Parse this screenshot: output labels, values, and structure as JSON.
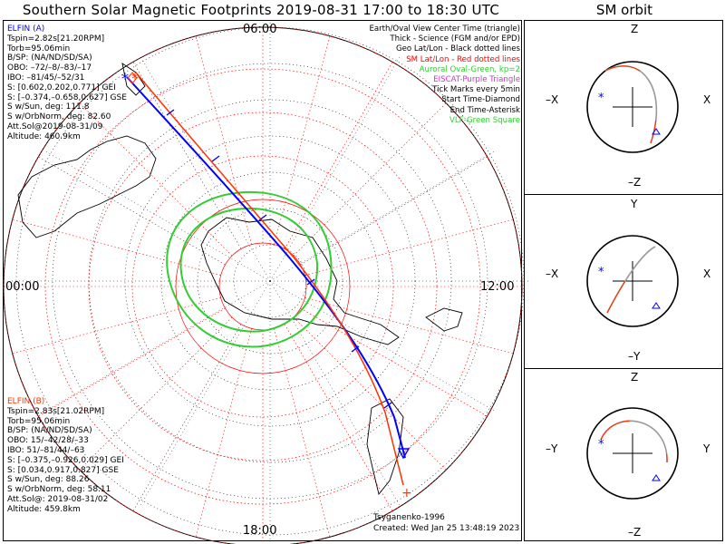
{
  "title": "Southern Solar Magnetic Footprints 2019-08-31 17:00 to 18:30 UTC",
  "sm_title": "SM orbit",
  "hour_labels": {
    "top": "06:00",
    "left": "00:00",
    "right": "12:00",
    "bottom": "18:00"
  },
  "elfin_a": {
    "lines": [
      "ELFIN (A)",
      "Tspin=2.82s[21.20RPM]",
      "Torb=95.06min",
      "B/SP: (NA/ND/SD/SA)",
      "OBO: –72/–8/–83/–17",
      "IBO: –81/45/–52/31",
      "S: [0.602,0.202,0.771] GEI",
      "S: [–0.374,–0.658,0.627] GSE",
      "S w/Sun, deg: 111.8",
      "S w/OrbNorm, deg: 82.60",
      "Att.Sol@2019-08-31/09",
      "Altitude: 460.9km"
    ]
  },
  "elfin_b": {
    "lines": [
      "ELFIN (B)",
      "Tspin=2.83s[21.02RPM]",
      "Torb=95.06min",
      "B/SP: (NA/ND/SD/SA)",
      "OBO: 15/–42/28/–33",
      "IBO: 51/–81/44/–63",
      "S: [–0.375,–0.926,0.029] GEI",
      "S: [0.034,0.917,0.827] GSE",
      "S w/Sun, deg: 88.26",
      "S w/OrbNorm, deg: 58.11",
      "Att.Sol@: 2019-08-31/02",
      "Altitude: 459.8km"
    ]
  },
  "legend": [
    {
      "text": "Earth/Oval View Center Time (triangle)",
      "color": "#000000"
    },
    {
      "text": "Thick - Science (FGM and/or EPD)",
      "color": "#000000"
    },
    {
      "text": "Geo Lat/Lon - Black dotted lines",
      "color": "#000000"
    },
    {
      "text": "SM Lat/Lon - Red dotted lines",
      "color": "#ff0000"
    },
    {
      "text": "Auroral Oval-Green, kp=2",
      "color": "#33cc33"
    },
    {
      "text": "EISCAT-Purple Triangle",
      "color": "#cc33cc"
    },
    {
      "text": "Tick Marks every 5min",
      "color": "#000000"
    },
    {
      "text": "Start Time-Diamond",
      "color": "#000000"
    },
    {
      "text": "End Time-Asterisk",
      "color": "#000000"
    },
    {
      "text": "VLF-Green Square",
      "color": "#33cc33"
    }
  ],
  "footer": {
    "model": "Tsyganenko-1996",
    "created": "Created: Wed Jan 25 13:48:19 2023"
  },
  "panels": [
    {
      "name": "XZ",
      "top": "Z",
      "bottom": "–Z",
      "left": "–X",
      "right": "X"
    },
    {
      "name": "XY",
      "top": "Y",
      "bottom": "–Y",
      "left": "–X",
      "right": "X"
    },
    {
      "name": "YZ",
      "top": "Z",
      "bottom": "–Z",
      "left": "–Y",
      "right": "Y"
    }
  ],
  "colors": {
    "elfin_a": "#0000ff",
    "elfin_b": "#ff3300",
    "oval": "#33cc33",
    "sm_grid": "#ff0000",
    "land": "#000000"
  }
}
